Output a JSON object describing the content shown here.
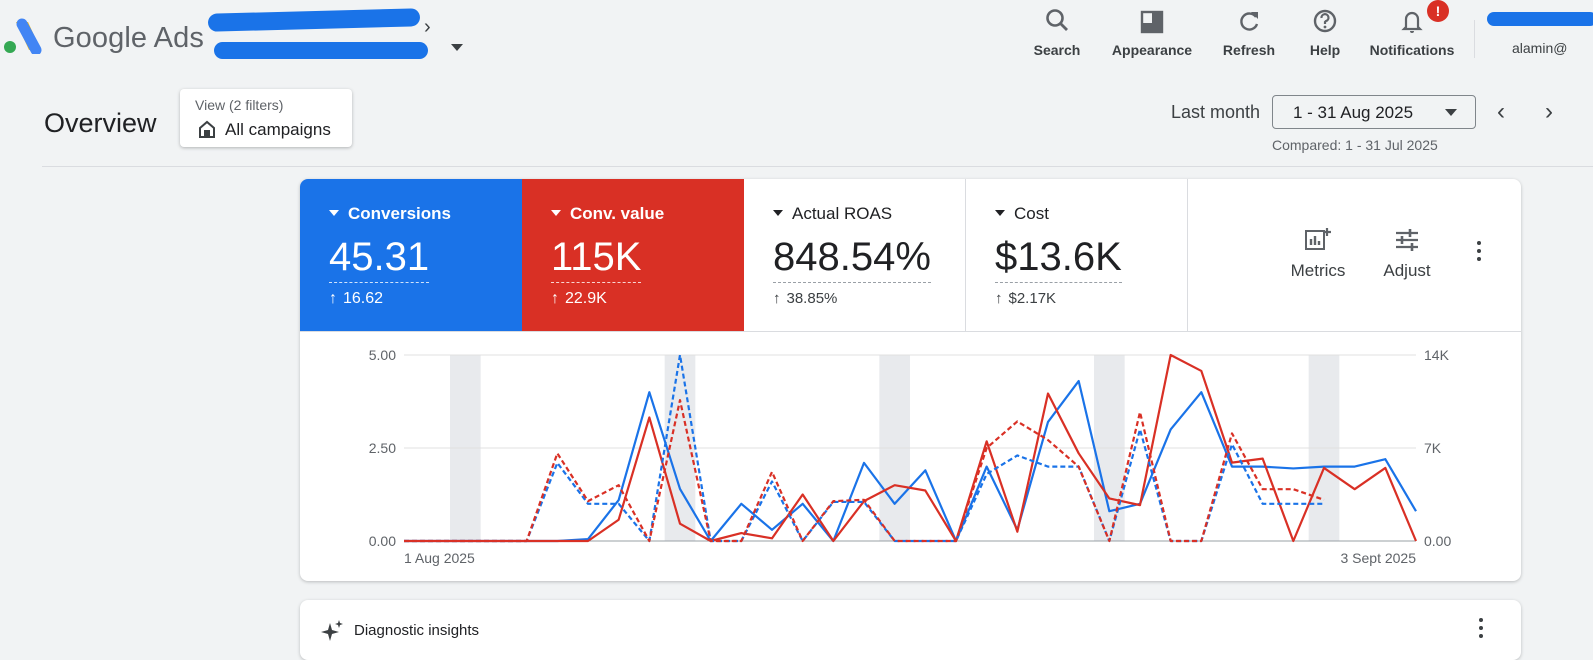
{
  "header": {
    "brand": "Google Ads",
    "tools": [
      {
        "label": "Search",
        "icon": "search-icon"
      },
      {
        "label": "Appearance",
        "icon": "appearance-icon"
      },
      {
        "label": "Refresh",
        "icon": "refresh-icon"
      },
      {
        "label": "Help",
        "icon": "help-icon"
      },
      {
        "label": "Notifications",
        "icon": "bell-icon",
        "badge": "!"
      }
    ],
    "user_email": "alamin@"
  },
  "overview": {
    "title": "Overview",
    "view_filters": "View (2 filters)",
    "view_campaigns": "All campaigns",
    "range_label": "Last month",
    "date_range": "1 - 31 Aug 2025",
    "compared": "Compared: 1 - 31 Jul 2025"
  },
  "scorecards": [
    {
      "name": "Conversions",
      "value": "45.31",
      "delta": "16.62",
      "style": "blue"
    },
    {
      "name": "Conv. value",
      "value": "115K",
      "delta": "22.9K",
      "style": "red"
    },
    {
      "name": "Actual ROAS",
      "value": "848.54%",
      "delta": "38.85%",
      "style": "white"
    },
    {
      "name": "Cost",
      "value": "$13.6K",
      "delta": "$2.17K",
      "style": "white"
    }
  ],
  "card_actions": {
    "metrics": "Metrics",
    "adjust": "Adjust"
  },
  "colors": {
    "blue": "#1a73e8",
    "red": "#d93025",
    "weekend_band": "#e8eaed"
  },
  "chart_data": {
    "type": "line",
    "x_start_label": "1 Aug 2025",
    "x_end_label": "3 Sept 2025",
    "left_axis": {
      "ticks": [
        "0.00",
        "2.50",
        "5.00"
      ],
      "ylim": [
        0,
        5
      ]
    },
    "right_axis": {
      "ticks": [
        "0.00",
        "7K",
        "14K"
      ],
      "ylim": [
        0,
        14000
      ]
    },
    "weekend_band_days": [
      2,
      9,
      16,
      23,
      30
    ],
    "series": [
      {
        "name": "Conversions",
        "axis": "left",
        "style": "solid",
        "color": "#1a73e8",
        "values": [
          0,
          0,
          0,
          0,
          0,
          0,
          0.05,
          1.1,
          4.0,
          1.4,
          0,
          1.0,
          0.3,
          1.0,
          0,
          2.1,
          1.0,
          1.9,
          0,
          2.0,
          0.3,
          3.2,
          4.3,
          0.8,
          1.0,
          3.0,
          4.0,
          2.0,
          2.0,
          1.95,
          2.0,
          2.0,
          2.2,
          0.8
        ]
      },
      {
        "name": "Conv. value",
        "axis": "right",
        "style": "solid",
        "color": "#d93025",
        "values": [
          0,
          0,
          0,
          0,
          0,
          0,
          0,
          1600,
          9300,
          1300,
          0,
          600,
          200,
          3500,
          0,
          3000,
          4200,
          3800,
          0,
          7500,
          700,
          11100,
          6600,
          3200,
          2700,
          14000,
          12800,
          5900,
          6200,
          0,
          5500,
          3900,
          5500,
          0
        ]
      },
      {
        "name": "Conversions (compared)",
        "axis": "left",
        "style": "dashed",
        "color": "#1a73e8",
        "values": [
          0,
          0,
          0,
          0,
          0,
          2.1,
          1.0,
          1.0,
          0,
          5.0,
          0,
          0,
          1.6,
          0,
          1.05,
          1.05,
          0,
          0,
          0,
          1.8,
          2.3,
          2.0,
          2.0,
          0,
          3.0,
          0,
          0,
          2.6,
          1.0,
          1.0,
          1.0
        ]
      },
      {
        "name": "Conv. value (compared)",
        "axis": "right",
        "style": "dashed",
        "color": "#d93025",
        "values": [
          0,
          0,
          0,
          0,
          0,
          6600,
          3000,
          4200,
          0,
          10600,
          0,
          0,
          5200,
          0,
          3000,
          3100,
          0,
          0,
          0,
          7000,
          9000,
          7600,
          5600,
          0,
          9700,
          0,
          0,
          8100,
          3900,
          3900,
          3100
        ]
      }
    ]
  },
  "diagnostic": {
    "title": "Diagnostic insights"
  }
}
